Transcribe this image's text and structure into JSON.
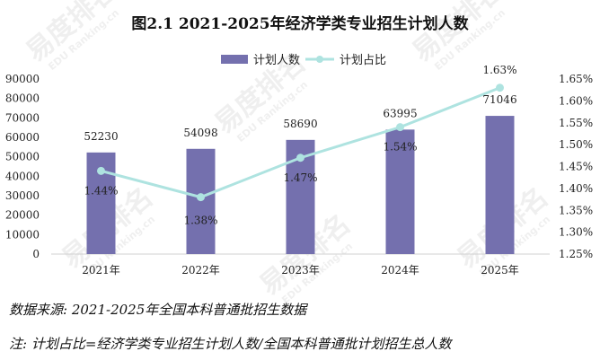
{
  "chart_data": {
    "type": "bar",
    "title": "图2.1  2021-2025年经济学类专业招生计划人数",
    "categories": [
      "2021年",
      "2022年",
      "2023年",
      "2024年",
      "2025年"
    ],
    "series": [
      {
        "name": "计划人数",
        "type": "bar",
        "axis": "left",
        "color": "#7470ae",
        "values": [
          52230,
          54098,
          58690,
          63995,
          71046
        ],
        "labels": [
          "52230",
          "54098",
          "58690",
          "63995",
          "71046"
        ]
      },
      {
        "name": "计划占比",
        "type": "line",
        "axis": "right",
        "color": "#aee3e0",
        "values": [
          1.44,
          1.38,
          1.47,
          1.54,
          1.63
        ],
        "labels": [
          "1.44%",
          "1.38%",
          "1.47%",
          "1.54%",
          "1.63%"
        ]
      }
    ],
    "y_left": {
      "min": 0,
      "max": 90000,
      "step": 10000,
      "ticks": [
        "0",
        "10000",
        "20000",
        "30000",
        "40000",
        "50000",
        "60000",
        "70000",
        "80000",
        "90000"
      ]
    },
    "y_right": {
      "min": 1.25,
      "max": 1.65,
      "step": 0.05,
      "ticks": [
        "1.25%",
        "1.30%",
        "1.35%",
        "1.40%",
        "1.45%",
        "1.50%",
        "1.55%",
        "1.60%",
        "1.65%"
      ]
    },
    "legend_position": "top-center",
    "grid": false
  },
  "source_note": "数据来源:  2021-2025年全国本科普通批招生数据",
  "formula_note": "注:  计划占比=经济学类专业招生计划人数/全国本科普通批计划招生总人数",
  "watermark": {
    "cn": "易度排名",
    "en": "EDU Ranking.cn"
  }
}
